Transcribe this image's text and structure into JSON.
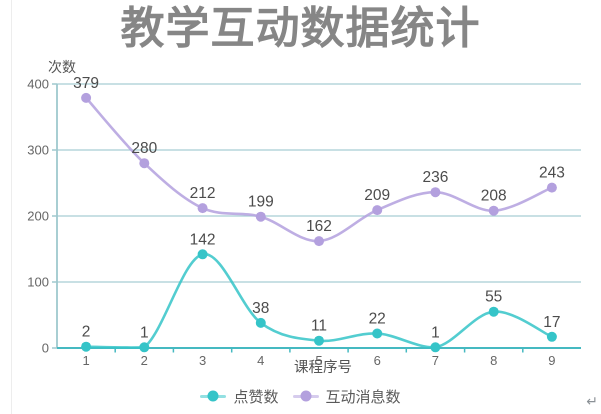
{
  "page": {
    "paragraph_mark": "↵"
  },
  "chart_data": {
    "type": "line",
    "title": "教学互动数据统计",
    "xlabel": "课程序号",
    "ylabel": "次数",
    "categories": [
      1,
      2,
      3,
      4,
      5,
      6,
      7,
      8,
      9
    ],
    "series": [
      {
        "name": "点赞数",
        "color": "#35c4c8",
        "values": [
          2,
          1,
          142,
          38,
          11,
          22,
          1,
          55,
          17
        ]
      },
      {
        "name": "互动消息数",
        "color": "#b3a0de",
        "values": [
          379,
          280,
          212,
          199,
          162,
          209,
          236,
          208,
          243
        ]
      }
    ],
    "ylim": [
      0,
      400
    ],
    "yticks": [
      0,
      100,
      200,
      300,
      400
    ],
    "grid": true,
    "smooth": true,
    "legend_position": "bottom",
    "colors": {
      "grid_line": "#a6ced4",
      "x_axis": "#45b9c1",
      "y_axis": "#9fc8ce",
      "value_label": "#4c4c4c",
      "tick_label": "#666666",
      "title_text": "#868686",
      "axis_title": "#555555",
      "legend_text": "#5a5a5a",
      "background": "#ffffff"
    }
  }
}
